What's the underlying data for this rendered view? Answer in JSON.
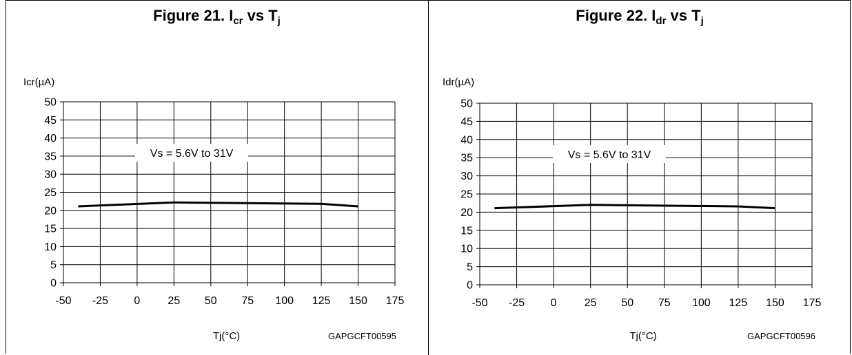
{
  "figures": [
    {
      "title_prefix": "Figure 21. I",
      "title_sub": "cr",
      "title_mid": " vs T",
      "title_sub2": "j",
      "code": "GAPGCFT00595"
    },
    {
      "title_prefix": "Figure 22. I",
      "title_sub": "dr",
      "title_mid": " vs T",
      "title_sub2": "j",
      "code": "GAPGCFT00596"
    }
  ],
  "chart_data": [
    {
      "type": "line",
      "xlabel": "Tj(°C)",
      "ylabel": "Icr(µA)",
      "xlim": [
        -50,
        175
      ],
      "ylim": [
        0,
        50
      ],
      "xticks": [
        -50,
        -25,
        0,
        25,
        50,
        75,
        100,
        125,
        150,
        175
      ],
      "yticks": [
        0,
        5,
        10,
        15,
        20,
        25,
        30,
        35,
        40,
        45,
        50
      ],
      "grid": true,
      "annotation": "Vs = 5.6V to 31V",
      "series": [
        {
          "x": [
            -40,
            25,
            125,
            150
          ],
          "y": [
            21.1,
            22.2,
            21.8,
            21.1
          ]
        }
      ]
    },
    {
      "type": "line",
      "xlabel": "Tj(°C)",
      "ylabel": "Idr(µA)",
      "xlim": [
        -50,
        175
      ],
      "ylim": [
        0,
        50
      ],
      "xticks": [
        -50,
        -25,
        0,
        25,
        50,
        75,
        100,
        125,
        150,
        175
      ],
      "yticks": [
        0,
        5,
        10,
        15,
        20,
        25,
        30,
        35,
        40,
        45,
        50
      ],
      "grid": true,
      "annotation": "Vs = 5.6V to 31V",
      "series": [
        {
          "x": [
            -40,
            25,
            125,
            150
          ],
          "y": [
            21.1,
            22.0,
            21.6,
            21.1
          ]
        }
      ]
    }
  ]
}
